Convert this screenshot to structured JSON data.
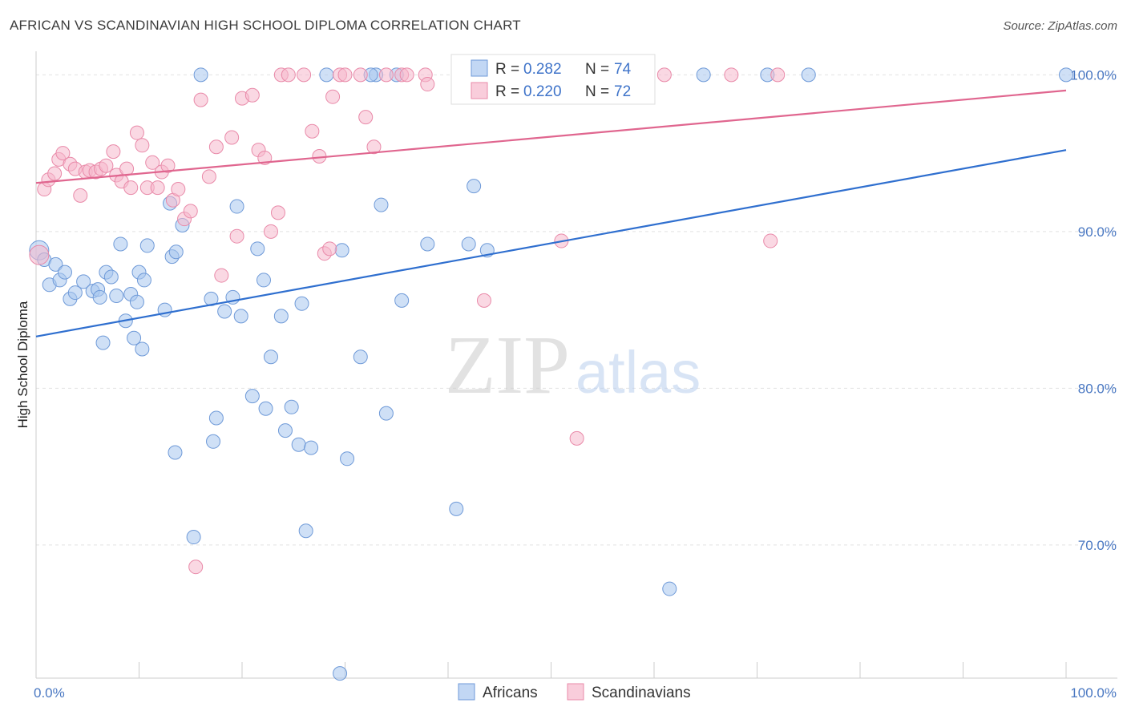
{
  "title": "AFRICAN VS SCANDINAVIAN HIGH SCHOOL DIPLOMA CORRELATION CHART",
  "source": "Source: ZipAtlas.com",
  "watermark": {
    "zip": "ZIP",
    "atlas": "atlas"
  },
  "chart_data": {
    "type": "scatter",
    "ylabel": "High School Diploma",
    "xlim": [
      0,
      100
    ],
    "ylim": [
      61.5,
      101.5
    ],
    "x_tick_labels": [
      "0.0%",
      "100.0%"
    ],
    "y_ticks": [
      {
        "value": 70,
        "label": "70.0%"
      },
      {
        "value": 80,
        "label": "80.0%"
      },
      {
        "value": 90,
        "label": "90.0%"
      },
      {
        "value": 100,
        "label": "100.0%"
      }
    ],
    "grid": true,
    "legend_position": "top-center",
    "series": [
      {
        "name": "Africans",
        "color": "#a8c6ef",
        "stroke": "#6f9ad8",
        "line_color": "#2f6fcf",
        "r": "0.282",
        "n": "74",
        "trend": {
          "x0": 0,
          "y0": 83.3,
          "x1": 100,
          "y1": 95.2
        },
        "points": [
          [
            0.3,
            88.8
          ],
          [
            0.8,
            88.2
          ],
          [
            1.3,
            86.6
          ],
          [
            1.9,
            87.9
          ],
          [
            2.3,
            86.9
          ],
          [
            2.8,
            87.4
          ],
          [
            3.3,
            85.7
          ],
          [
            3.8,
            86.1
          ],
          [
            4.6,
            86.8
          ],
          [
            5.5,
            86.2
          ],
          [
            6.0,
            86.3
          ],
          [
            6.2,
            85.8
          ],
          [
            6.5,
            82.9
          ],
          [
            6.8,
            87.4
          ],
          [
            7.3,
            87.1
          ],
          [
            7.8,
            85.9
          ],
          [
            8.2,
            89.2
          ],
          [
            8.7,
            84.3
          ],
          [
            9.2,
            86.0
          ],
          [
            9.5,
            83.2
          ],
          [
            9.8,
            85.5
          ],
          [
            10.0,
            87.4
          ],
          [
            10.3,
            82.5
          ],
          [
            10.5,
            86.9
          ],
          [
            10.8,
            89.1
          ],
          [
            12.5,
            85.0
          ],
          [
            13.2,
            88.4
          ],
          [
            13.0,
            91.8
          ],
          [
            13.6,
            88.7
          ],
          [
            13.5,
            75.9
          ],
          [
            14.2,
            90.4
          ],
          [
            15.3,
            70.5
          ],
          [
            16.0,
            100.0
          ],
          [
            17.0,
            85.7
          ],
          [
            17.2,
            76.6
          ],
          [
            17.5,
            78.1
          ],
          [
            18.3,
            84.9
          ],
          [
            19.1,
            85.8
          ],
          [
            19.5,
            91.6
          ],
          [
            19.9,
            84.6
          ],
          [
            21.0,
            79.5
          ],
          [
            21.5,
            88.9
          ],
          [
            22.1,
            86.9
          ],
          [
            22.3,
            78.7
          ],
          [
            22.8,
            82.0
          ],
          [
            23.8,
            84.6
          ],
          [
            24.2,
            77.3
          ],
          [
            24.8,
            78.8
          ],
          [
            25.5,
            76.4
          ],
          [
            25.8,
            85.4
          ],
          [
            26.2,
            70.9
          ],
          [
            26.7,
            76.2
          ],
          [
            28.2,
            100.0
          ],
          [
            29.5,
            61.8
          ],
          [
            29.7,
            88.8
          ],
          [
            30.2,
            75.5
          ],
          [
            31.5,
            82.0
          ],
          [
            33.0,
            100.0
          ],
          [
            33.5,
            91.7
          ],
          [
            34.0,
            78.4
          ],
          [
            35.0,
            100.0
          ],
          [
            35.5,
            85.6
          ],
          [
            38.0,
            89.2
          ],
          [
            40.8,
            72.3
          ],
          [
            42.0,
            89.2
          ],
          [
            42.5,
            92.9
          ],
          [
            43.8,
            88.8
          ],
          [
            55.0,
            99.0
          ],
          [
            61.5,
            67.2
          ],
          [
            64.8,
            100.0
          ],
          [
            71.0,
            100.0
          ],
          [
            75.0,
            100.0
          ],
          [
            100.0,
            100.0
          ],
          [
            32.5,
            100.0
          ]
        ]
      },
      {
        "name": "Scandinavians",
        "color": "#f6b8cc",
        "stroke": "#e98aa9",
        "line_color": "#e0668f",
        "r": "0.220",
        "n": "72",
        "trend": {
          "x0": 0,
          "y0": 93.1,
          "x1": 100,
          "y1": 99.0
        },
        "points": [
          [
            0.3,
            88.5
          ],
          [
            0.8,
            92.7
          ],
          [
            1.2,
            93.3
          ],
          [
            1.8,
            93.7
          ],
          [
            2.2,
            94.6
          ],
          [
            2.6,
            95.0
          ],
          [
            3.3,
            94.3
          ],
          [
            3.8,
            94.0
          ],
          [
            4.3,
            92.3
          ],
          [
            4.8,
            93.8
          ],
          [
            5.2,
            93.9
          ],
          [
            5.8,
            93.8
          ],
          [
            6.3,
            94.0
          ],
          [
            6.8,
            94.2
          ],
          [
            7.5,
            95.1
          ],
          [
            7.8,
            93.6
          ],
          [
            8.3,
            93.2
          ],
          [
            8.8,
            94.0
          ],
          [
            9.2,
            92.8
          ],
          [
            9.8,
            96.3
          ],
          [
            10.3,
            95.5
          ],
          [
            10.8,
            92.8
          ],
          [
            11.3,
            94.4
          ],
          [
            11.8,
            92.8
          ],
          [
            12.2,
            93.8
          ],
          [
            12.8,
            94.2
          ],
          [
            13.3,
            92.0
          ],
          [
            13.8,
            92.7
          ],
          [
            14.4,
            90.8
          ],
          [
            15.0,
            91.3
          ],
          [
            15.5,
            68.6
          ],
          [
            16.0,
            98.4
          ],
          [
            16.8,
            93.5
          ],
          [
            17.5,
            95.4
          ],
          [
            18.0,
            87.2
          ],
          [
            19.0,
            96.0
          ],
          [
            19.5,
            89.7
          ],
          [
            20.0,
            98.5
          ],
          [
            21.0,
            98.7
          ],
          [
            21.6,
            95.2
          ],
          [
            22.2,
            94.7
          ],
          [
            22.8,
            90.0
          ],
          [
            23.5,
            91.2
          ],
          [
            23.8,
            100.0
          ],
          [
            24.5,
            100.0
          ],
          [
            26.0,
            100.0
          ],
          [
            26.8,
            96.4
          ],
          [
            27.5,
            94.8
          ],
          [
            28.0,
            88.6
          ],
          [
            28.5,
            88.9
          ],
          [
            28.8,
            98.6
          ],
          [
            29.5,
            100.0
          ],
          [
            30.0,
            100.0
          ],
          [
            31.5,
            100.0
          ],
          [
            32.0,
            97.3
          ],
          [
            32.8,
            95.4
          ],
          [
            34.0,
            100.0
          ],
          [
            35.5,
            100.0
          ],
          [
            36.0,
            100.0
          ],
          [
            37.8,
            100.0
          ],
          [
            38.0,
            99.4
          ],
          [
            43.5,
            85.6
          ],
          [
            45.0,
            100.0
          ],
          [
            47.5,
            100.0
          ],
          [
            51.0,
            89.4
          ],
          [
            52.5,
            76.8
          ],
          [
            53.0,
            100.0
          ],
          [
            56.5,
            100.0
          ],
          [
            61.0,
            100.0
          ],
          [
            67.5,
            100.0
          ],
          [
            71.3,
            89.4
          ],
          [
            72.0,
            100.0
          ]
        ]
      }
    ]
  }
}
